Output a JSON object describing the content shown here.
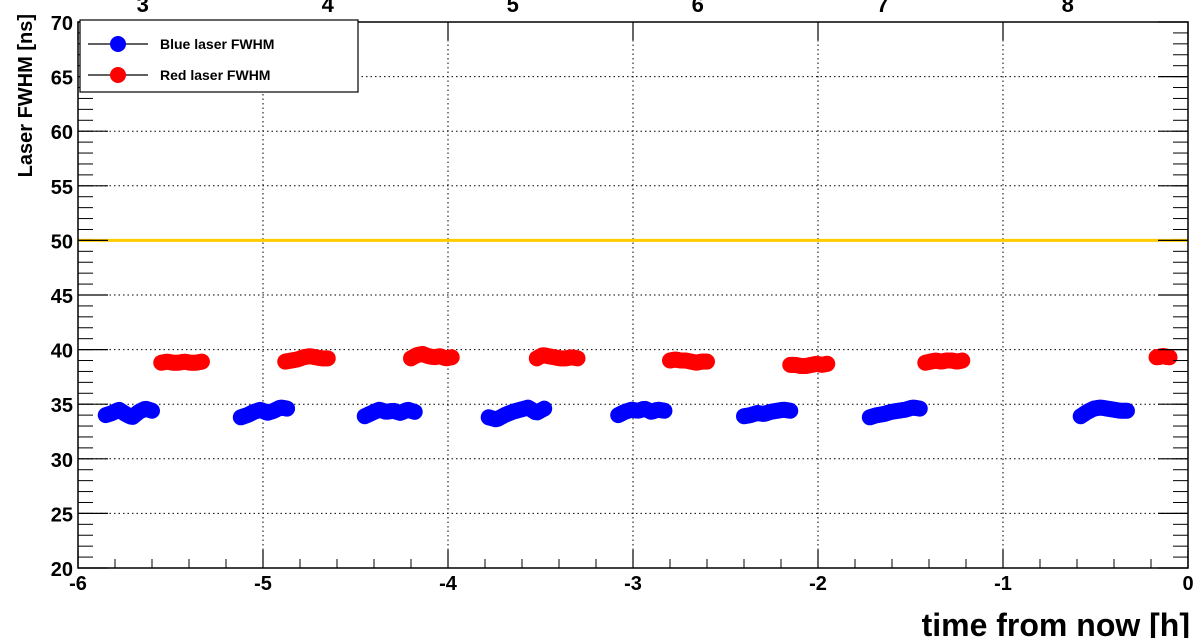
{
  "chart_data": {
    "type": "scatter",
    "xlabel": "time from now [h]",
    "ylabel": "Laser FWHM [ns]",
    "xlim": [
      -6,
      0
    ],
    "ylim": [
      20,
      70
    ],
    "x_ticks": [
      "-6",
      "-5",
      "-4",
      "-3",
      "-2",
      "-1",
      "0"
    ],
    "y_ticks": [
      "20",
      "25",
      "30",
      "35",
      "40",
      "45",
      "50",
      "55",
      "60",
      "65",
      "70"
    ],
    "top_axis_labels": [
      "3",
      "4",
      "5",
      "6",
      "7",
      "8"
    ],
    "top_axis_positions": [
      -5.65,
      -4.65,
      -3.65,
      -2.65,
      -1.65,
      -0.65
    ],
    "grid": true,
    "legend_position": "top-left",
    "threshold_line": {
      "y": 50,
      "color": "#ffcc00"
    },
    "series": [
      {
        "name": "Blue laser FWHM",
        "color": "#0000ff",
        "clusters": [
          {
            "x_start": -5.85,
            "x_end": -5.6,
            "y": [
              34.0,
              34.2,
              34.5,
              34.1,
              33.8,
              34.3,
              34.6,
              34.4
            ]
          },
          {
            "x_start": -5.12,
            "x_end": -4.87,
            "y": [
              33.8,
              34.0,
              34.3,
              34.5,
              34.2,
              34.4,
              34.7,
              34.6
            ]
          },
          {
            "x_start": -4.45,
            "x_end": -4.18,
            "y": [
              33.9,
              34.2,
              34.5,
              34.3,
              34.4,
              34.2,
              34.5,
              34.3
            ]
          },
          {
            "x_start": -3.78,
            "x_end": -3.48,
            "y": [
              33.8,
              33.6,
              34.0,
              34.3,
              34.5,
              34.7,
              34.2,
              34.6
            ]
          },
          {
            "x_start": -3.08,
            "x_end": -2.83,
            "y": [
              34.0,
              34.3,
              34.5,
              34.4,
              34.6,
              34.3,
              34.5,
              34.4
            ]
          },
          {
            "x_start": -2.4,
            "x_end": -2.15,
            "y": [
              33.9,
              34.0,
              34.2,
              34.1,
              34.3,
              34.4,
              34.5,
              34.4
            ]
          },
          {
            "x_start": -1.72,
            "x_end": -1.45,
            "y": [
              33.8,
              34.0,
              34.1,
              34.3,
              34.4,
              34.5,
              34.7,
              34.6
            ]
          },
          {
            "x_start": -0.58,
            "x_end": -0.33,
            "y": [
              33.9,
              34.3,
              34.6,
              34.7,
              34.6,
              34.5,
              34.4,
              34.4
            ]
          }
        ]
      },
      {
        "name": "Red laser FWHM",
        "color": "#ff0000",
        "clusters": [
          {
            "x_start": -5.55,
            "x_end": -5.33,
            "y": [
              38.8,
              38.9,
              38.8,
              38.8,
              38.9,
              38.8,
              38.8,
              38.9
            ]
          },
          {
            "x_start": -4.88,
            "x_end": -4.65,
            "y": [
              38.9,
              39.0,
              39.1,
              39.3,
              39.4,
              39.3,
              39.2,
              39.2
            ]
          },
          {
            "x_start": -4.2,
            "x_end": -3.98,
            "y": [
              39.2,
              39.5,
              39.6,
              39.4,
              39.3,
              39.4,
              39.2,
              39.3
            ]
          },
          {
            "x_start": -3.52,
            "x_end": -3.3,
            "y": [
              39.2,
              39.5,
              39.4,
              39.3,
              39.2,
              39.2,
              39.3,
              39.2
            ]
          },
          {
            "x_start": -2.8,
            "x_end": -2.6,
            "y": [
              39.0,
              39.1,
              39.0,
              39.0,
              38.9,
              38.8,
              38.9,
              38.9
            ]
          },
          {
            "x_start": -2.15,
            "x_end": -1.95,
            "y": [
              38.6,
              38.6,
              38.5,
              38.5,
              38.6,
              38.7,
              38.6,
              38.7
            ]
          },
          {
            "x_start": -1.42,
            "x_end": -1.22,
            "y": [
              38.8,
              38.9,
              39.0,
              38.9,
              39.0,
              39.0,
              38.9,
              39.0
            ]
          },
          {
            "x_start": -0.17,
            "x_end": -0.1,
            "y": [
              39.3,
              39.4,
              39.3
            ]
          }
        ]
      }
    ]
  }
}
